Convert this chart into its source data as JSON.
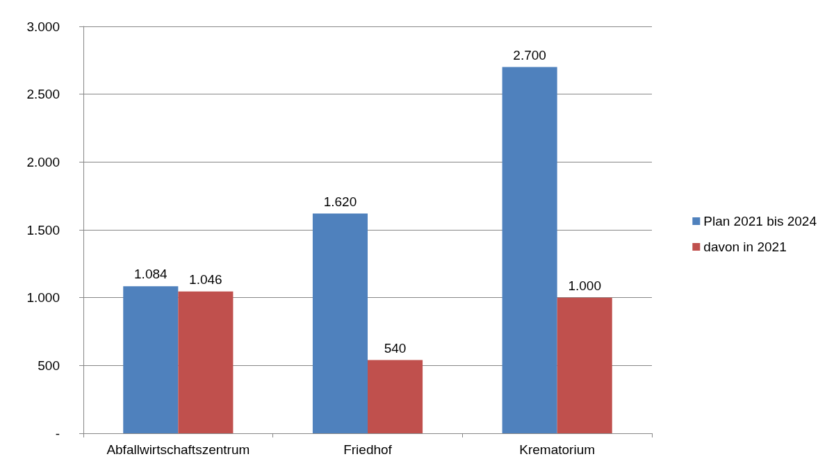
{
  "chart_data": {
    "type": "bar",
    "categories": [
      "Abfallwirtschaftszentrum",
      "Friedhof",
      "Krematorium"
    ],
    "series": [
      {
        "name": "Plan 2021 bis 2024",
        "color": "#4f81bd",
        "values": [
          1084,
          1620,
          2700
        ],
        "value_labels": [
          "1.084",
          "1.620",
          "2.700"
        ]
      },
      {
        "name": "davon in 2021",
        "color": "#c0504d",
        "values": [
          1046,
          540,
          1000
        ],
        "value_labels": [
          "1.046",
          "540",
          "1.000"
        ]
      }
    ],
    "ylim": [
      0,
      3000
    ],
    "yticks": [
      {
        "value": 0,
        "label": "-"
      },
      500,
      {
        "value": 1000,
        "label": "1.000"
      },
      {
        "value": 1500,
        "label": "1.500"
      },
      {
        "value": 2000,
        "label": "2.000"
      },
      {
        "value": 2500,
        "label": "2.500"
      },
      {
        "value": 3000,
        "label": "3.000"
      }
    ],
    "grid": "y",
    "legend": "right"
  }
}
